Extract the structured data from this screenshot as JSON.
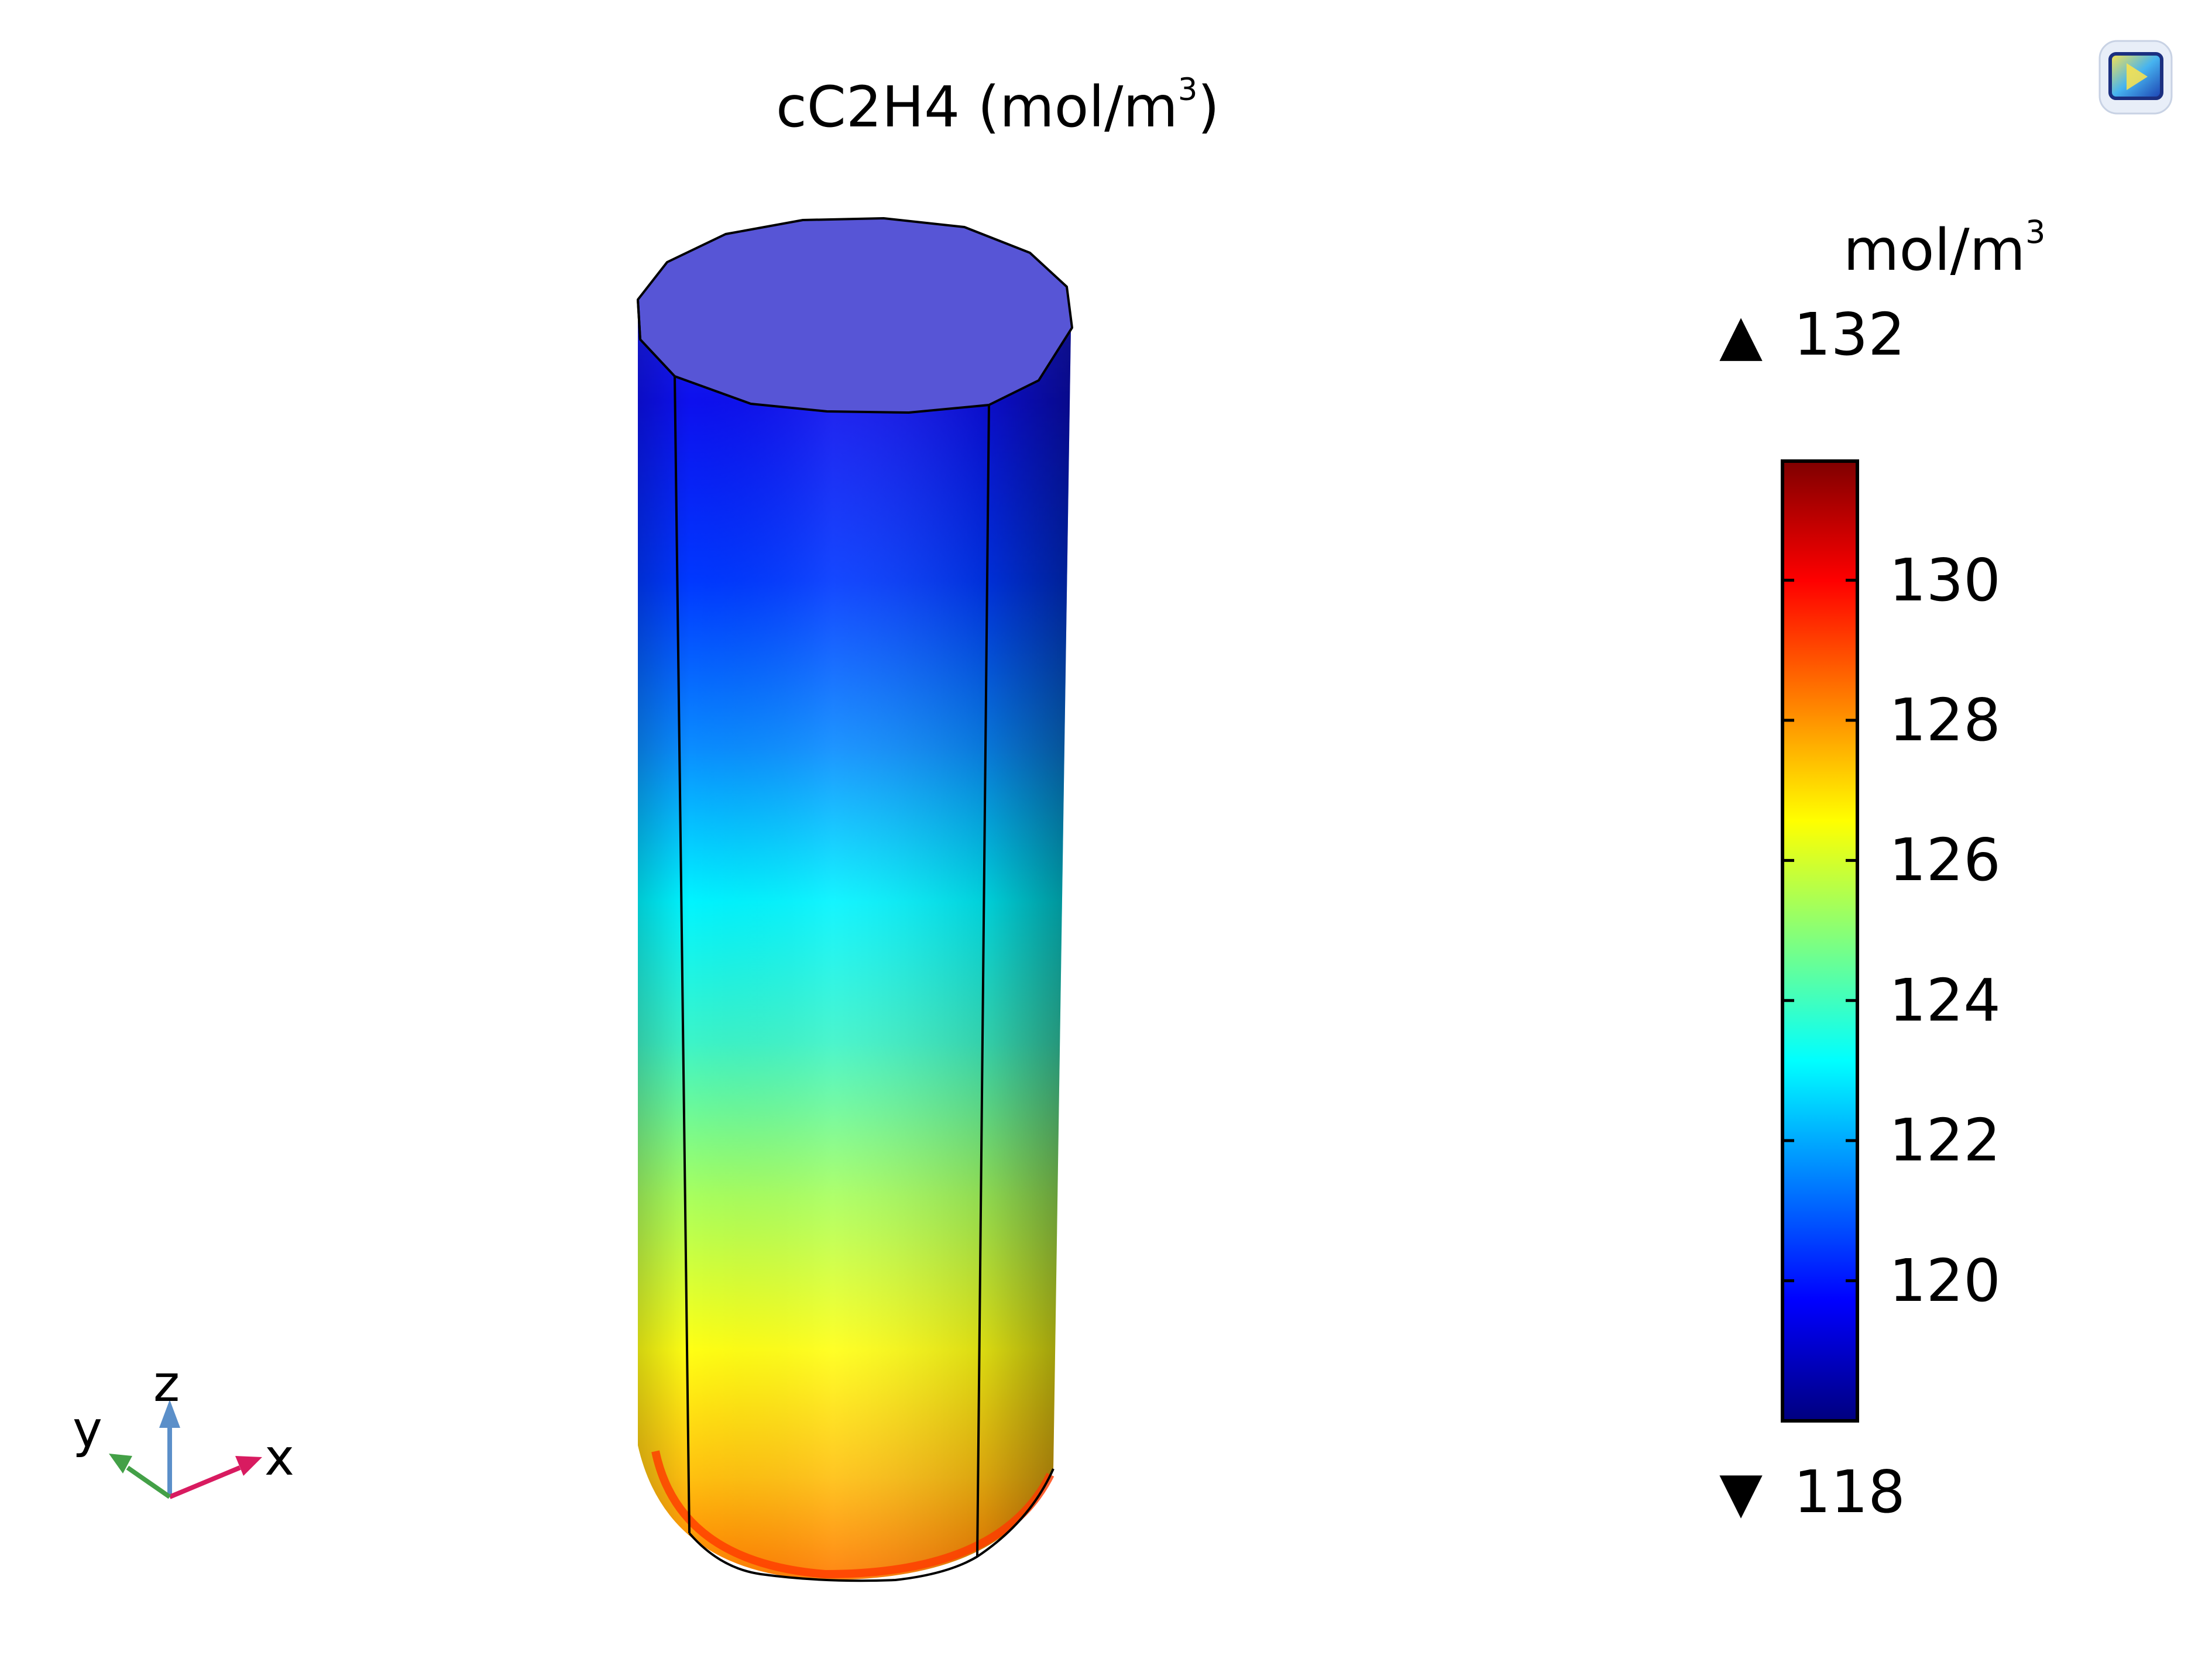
{
  "title": {
    "main": "cC2H4 (mol/m",
    "sup": "3",
    "close": ")"
  },
  "colorbar": {
    "unit": {
      "main": "mol/m",
      "sup": "3"
    },
    "max_label": "132",
    "min_label": "118",
    "max_arrow": "▲",
    "min_arrow": "▼",
    "range": [
      118,
      131.7
    ],
    "ticks": [
      "130",
      "128",
      "126",
      "124",
      "122",
      "120"
    ],
    "colormap": "rainbow",
    "colors": [
      "#00007f",
      "#0000ff",
      "#007fff",
      "#00ffff",
      "#7fff7f",
      "#ffff00",
      "#ff7f00",
      "#ff0000",
      "#7f0000"
    ]
  },
  "axes_triad": {
    "x": "x",
    "y": "y",
    "z": "z",
    "x_color": "#d81b60",
    "y_color": "#43a047",
    "z_color": "#5b8fc9"
  },
  "icon": "graphics-window-icon"
}
